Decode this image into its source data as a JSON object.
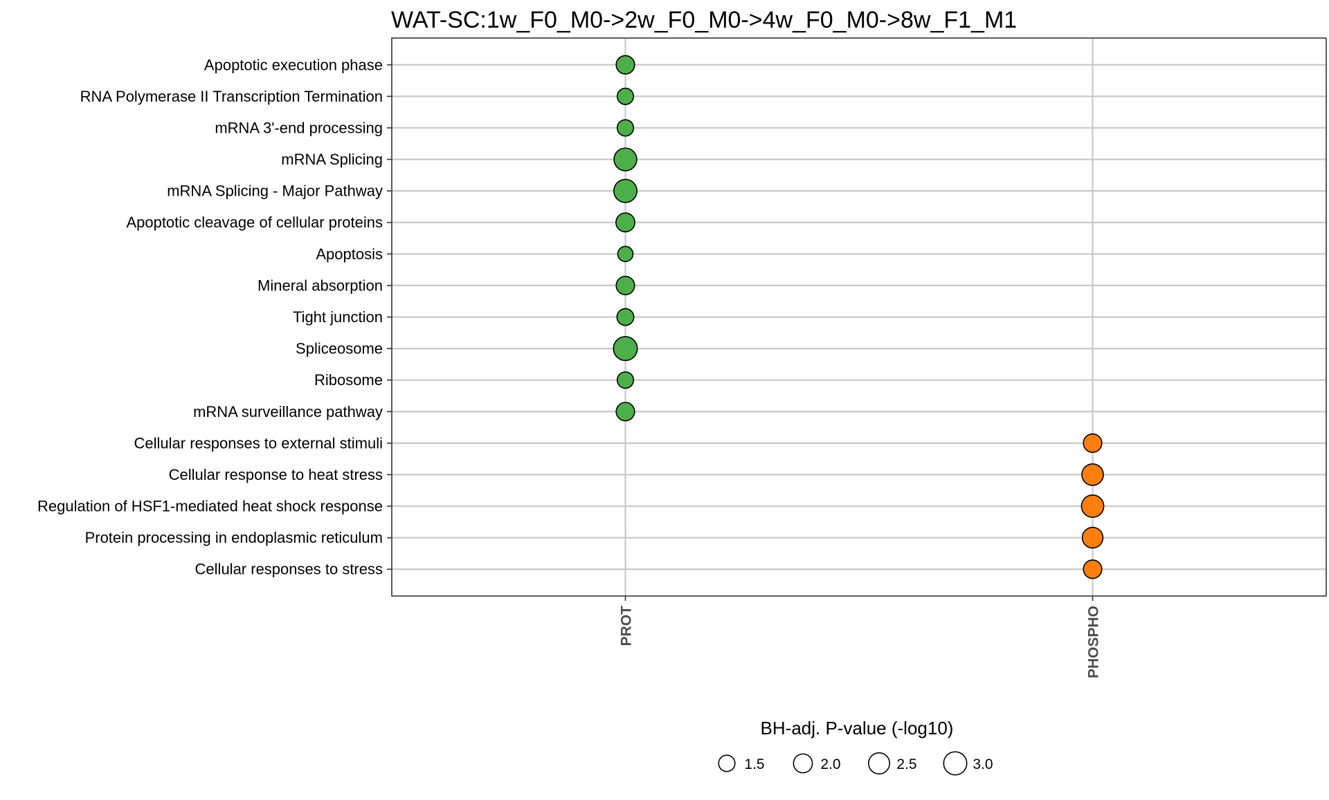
{
  "chart_data": {
    "type": "scatter",
    "title": "WAT-SC:1w_F0_M0->2w_F0_M0->4w_F0_M0->8w_F1_M1",
    "xlabel": "",
    "ylabel": "",
    "x_categories": [
      "PROT",
      "PHOSPHO"
    ],
    "y_categories": [
      "Apoptotic execution phase",
      "RNA Polymerase II Transcription Termination",
      "mRNA 3'-end processing",
      "mRNA Splicing",
      "mRNA Splicing - Major Pathway",
      "Apoptotic cleavage of cellular proteins",
      "Apoptosis",
      "Mineral absorption",
      "Tight junction",
      "Spliceosome",
      "Ribosome",
      "mRNA surveillance pathway",
      "Cellular responses to external stimuli",
      "Cellular response to heat stress",
      "Regulation of HSF1-mediated heat shock response",
      "Protein processing in endoplasmic reticulum",
      "Cellular responses to stress"
    ],
    "points": [
      {
        "x": "PROT",
        "y": "Apoptotic execution phase",
        "size": 1.9,
        "color": "#4daf4a"
      },
      {
        "x": "PROT",
        "y": "RNA Polymerase II Transcription Termination",
        "size": 1.5,
        "color": "#4daf4a"
      },
      {
        "x": "PROT",
        "y": "mRNA 3'-end processing",
        "size": 1.5,
        "color": "#4daf4a"
      },
      {
        "x": "PROT",
        "y": "mRNA Splicing",
        "size": 2.9,
        "color": "#4daf4a"
      },
      {
        "x": "PROT",
        "y": "mRNA Splicing - Major Pathway",
        "size": 3.0,
        "color": "#4daf4a"
      },
      {
        "x": "PROT",
        "y": "Apoptotic cleavage of cellular proteins",
        "size": 2.0,
        "color": "#4daf4a"
      },
      {
        "x": "PROT",
        "y": "Apoptosis",
        "size": 1.3,
        "color": "#4daf4a"
      },
      {
        "x": "PROT",
        "y": "Mineral absorption",
        "size": 1.9,
        "color": "#4daf4a"
      },
      {
        "x": "PROT",
        "y": "Tight junction",
        "size": 1.6,
        "color": "#4daf4a"
      },
      {
        "x": "PROT",
        "y": "Spliceosome",
        "size": 3.2,
        "color": "#4daf4a"
      },
      {
        "x": "PROT",
        "y": "Ribosome",
        "size": 1.5,
        "color": "#4daf4a"
      },
      {
        "x": "PROT",
        "y": "mRNA surveillance pathway",
        "size": 1.9,
        "color": "#4daf4a"
      },
      {
        "x": "PHOSPHO",
        "y": "Cellular responses to external stimuli",
        "size": 1.9,
        "color": "#ff7f0e"
      },
      {
        "x": "PHOSPHO",
        "y": "Cellular response to heat stress",
        "size": 2.6,
        "color": "#ff7f0e"
      },
      {
        "x": "PHOSPHO",
        "y": "Regulation of HSF1-mediated heat shock response",
        "size": 2.8,
        "color": "#ff7f0e"
      },
      {
        "x": "PHOSPHO",
        "y": "Protein processing in endoplasmic reticulum",
        "size": 2.4,
        "color": "#ff7f0e"
      },
      {
        "x": "PHOSPHO",
        "y": "Cellular responses to stress",
        "size": 1.9,
        "color": "#ff7f0e"
      }
    ],
    "size_legend": {
      "title": "BH-adj. P-value (-log10)",
      "breaks": [
        1.5,
        2.0,
        2.5,
        3.0
      ],
      "labels": [
        "1.5",
        "2.0",
        "2.5",
        "3.0"
      ],
      "placement": "bottom"
    },
    "grid": true,
    "colors": {
      "PROT": "#4daf4a",
      "PHOSPHO": "#ff7f0e",
      "gridline": "#c8c8c8",
      "axis_text": "#4d4d4d"
    }
  }
}
